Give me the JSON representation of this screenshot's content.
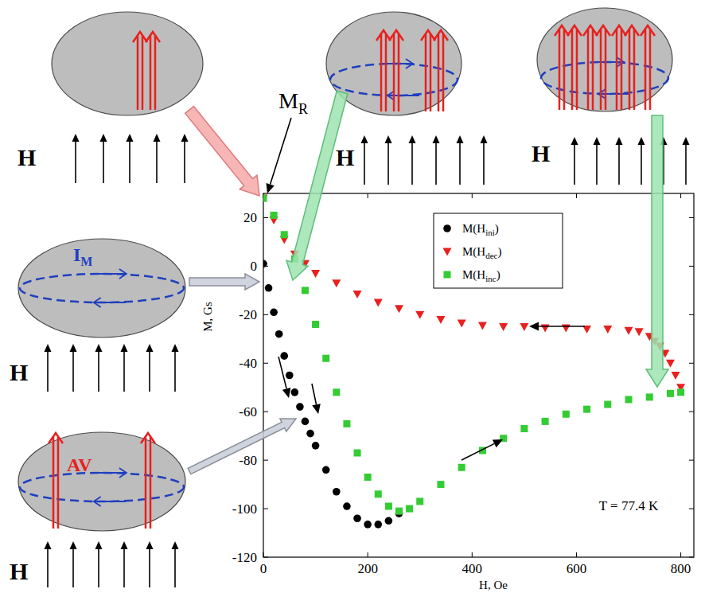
{
  "chart_data": {
    "type": "scatter",
    "xlabel": "H, Oe",
    "ylabel": "M, Gs",
    "xlim": [
      0,
      825
    ],
    "ylim": [
      -120,
      30
    ],
    "xticks": [
      0,
      200,
      400,
      600,
      800
    ],
    "yticks": [
      -120,
      -100,
      -80,
      -60,
      -40,
      -20,
      0,
      20
    ],
    "grid": false,
    "legend": "upper right",
    "series": [
      {
        "name": "M(Hini)",
        "color": "#000000",
        "marker": "circle",
        "x": [
          0,
          10,
          20,
          30,
          40,
          50,
          60,
          70,
          80,
          90,
          100,
          120,
          140,
          160,
          180,
          200,
          220,
          240,
          260
        ],
        "values": [
          1,
          -9,
          -19,
          -28,
          -37,
          -45,
          -52,
          -58,
          -64,
          -69,
          -74,
          -84,
          -93,
          -99,
          -104,
          -106.5,
          -106.5,
          -105,
          -102
        ]
      },
      {
        "name": "M(Hdec)",
        "color": "#e8201e",
        "marker": "triangle-down",
        "x": [
          800,
          790,
          780,
          770,
          760,
          750,
          740,
          720,
          700,
          660,
          620,
          580,
          540,
          500,
          460,
          420,
          380,
          340,
          300,
          260,
          220,
          180,
          140,
          100,
          80,
          60,
          40,
          20,
          0
        ],
        "values": [
          -50,
          -45,
          -40,
          -36,
          -33,
          -31,
          -29,
          -27,
          -26.5,
          -26,
          -26,
          -25.5,
          -25.5,
          -25,
          -25,
          -24.5,
          -23.5,
          -22,
          -20,
          -17.5,
          -15,
          -11.5,
          -7,
          -3,
          1,
          5,
          11,
          19,
          28
        ]
      },
      {
        "name": "M(Hinc)",
        "color": "#33cc33",
        "marker": "square",
        "x": [
          0,
          20,
          40,
          60,
          80,
          100,
          120,
          140,
          160,
          180,
          200,
          220,
          240,
          260,
          280,
          300,
          340,
          380,
          420,
          460,
          500,
          540,
          580,
          620,
          660,
          700,
          740,
          780,
          800
        ],
        "values": [
          28,
          21,
          13,
          3,
          -10,
          -24,
          -38,
          -52,
          -65,
          -77,
          -87,
          -94,
          -99,
          -101,
          -100,
          -97,
          -90,
          -83,
          -76,
          -71,
          -67,
          -64,
          -61,
          -59,
          -57,
          -55,
          -54,
          -52.5,
          -52
        ]
      }
    ],
    "annotations": [
      {
        "text": "T = 77.4 K"
      },
      {
        "text": "M",
        "subscript": "R"
      }
    ]
  },
  "diagram": {
    "field_label": "H",
    "current_label": {
      "text": "I",
      "subscript": "M"
    },
    "vortex_label": "AV"
  }
}
